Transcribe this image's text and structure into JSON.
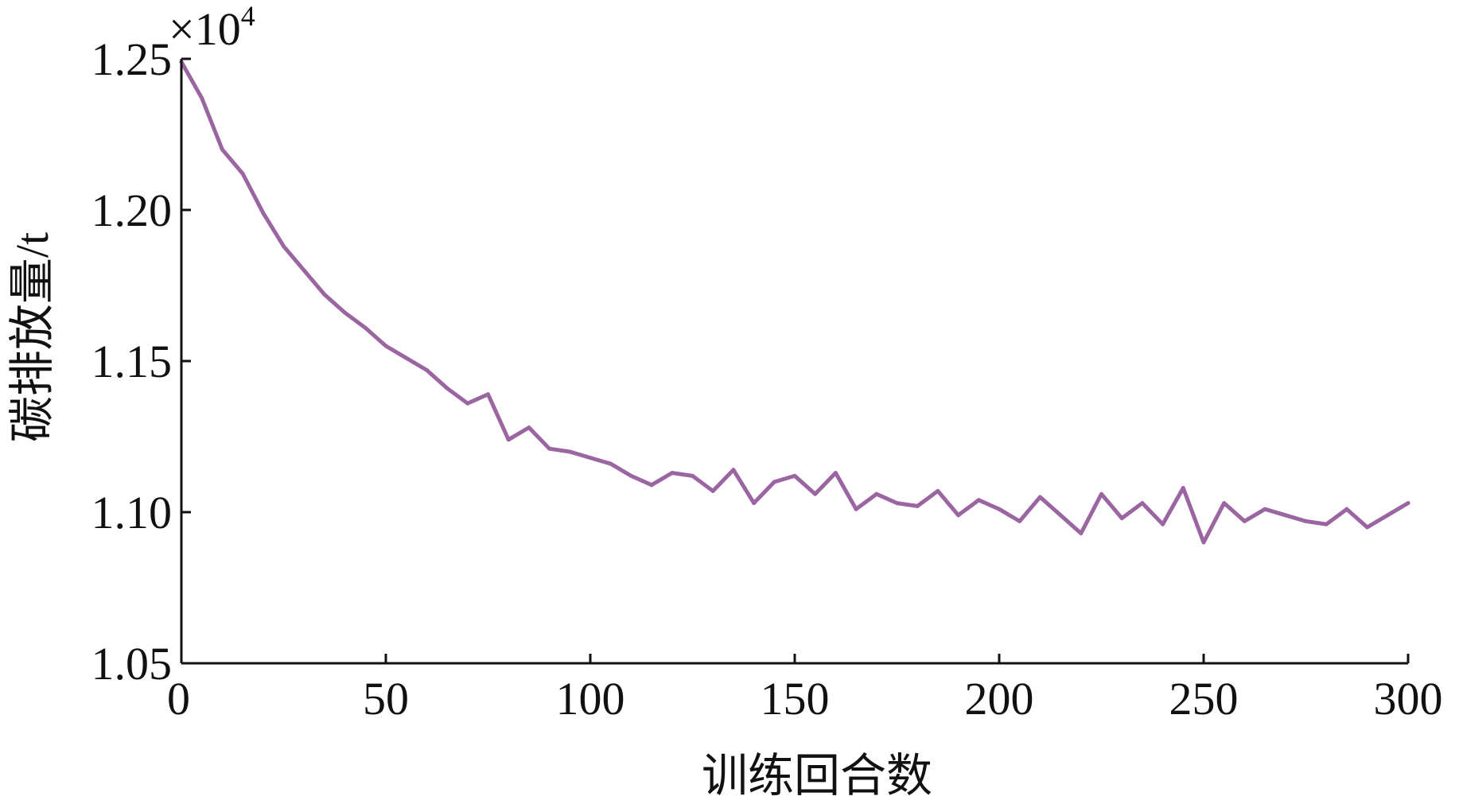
{
  "chart_data": {
    "type": "line",
    "title": "",
    "xlabel": "训练回合数",
    "ylabel": "碳排放量/t",
    "y_scale_label": "×10",
    "y_scale_exponent": "4",
    "xlim": [
      0,
      300
    ],
    "ylim": [
      1.05,
      1.25
    ],
    "xticks": [
      "0",
      "50",
      "100",
      "150",
      "200",
      "250",
      "300"
    ],
    "yticks": [
      "1.05",
      "1.10",
      "1.15",
      "1.20",
      "1.25"
    ],
    "grid": false,
    "legend": "none",
    "series": [
      {
        "color": "#9b65a2",
        "x": [
          0,
          5,
          10,
          15,
          20,
          25,
          30,
          35,
          40,
          45,
          50,
          55,
          60,
          65,
          70,
          75,
          80,
          85,
          90,
          95,
          100,
          105,
          110,
          115,
          120,
          125,
          130,
          135,
          140,
          145,
          150,
          155,
          160,
          165,
          170,
          175,
          180,
          185,
          190,
          195,
          200,
          205,
          210,
          215,
          220,
          225,
          230,
          235,
          240,
          245,
          250,
          255,
          260,
          265,
          270,
          275,
          280,
          285,
          290,
          295,
          300
        ],
        "y": [
          1.249,
          1.237,
          1.22,
          1.212,
          1.199,
          1.188,
          1.18,
          1.172,
          1.166,
          1.161,
          1.155,
          1.151,
          1.147,
          1.141,
          1.136,
          1.139,
          1.124,
          1.128,
          1.121,
          1.12,
          1.118,
          1.116,
          1.112,
          1.109,
          1.113,
          1.112,
          1.107,
          1.114,
          1.103,
          1.11,
          1.112,
          1.106,
          1.113,
          1.101,
          1.106,
          1.103,
          1.102,
          1.107,
          1.099,
          1.104,
          1.101,
          1.097,
          1.105,
          1.099,
          1.093,
          1.106,
          1.098,
          1.103,
          1.096,
          1.108,
          1.09,
          1.103,
          1.097,
          1.101,
          1.099,
          1.097,
          1.096,
          1.101,
          1.095,
          1.099,
          1.103
        ]
      }
    ]
  }
}
